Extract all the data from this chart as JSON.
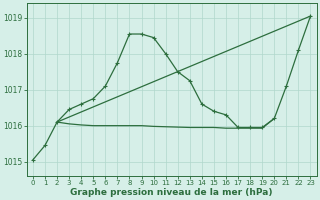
{
  "bg_color": "#d6efe8",
  "grid_color": "#b0d8cc",
  "line_color": "#2d6e3e",
  "title": "Graphe pression niveau de la mer (hPa)",
  "ylim": [
    1014.6,
    1019.4
  ],
  "xlim": [
    -0.5,
    23.5
  ],
  "yticks": [
    1015,
    1016,
    1017,
    1018,
    1019
  ],
  "xticks": [
    0,
    1,
    2,
    3,
    4,
    5,
    6,
    7,
    8,
    9,
    10,
    11,
    12,
    13,
    14,
    15,
    16,
    17,
    18,
    19,
    20,
    21,
    22,
    23
  ],
  "line1_x": [
    0,
    1,
    2,
    3,
    4,
    5,
    6,
    7,
    8,
    9,
    10,
    11,
    12,
    13,
    14,
    15,
    16,
    17,
    18,
    19,
    20,
    21,
    22,
    23
  ],
  "line1_y": [
    1015.05,
    1015.45,
    1016.1,
    1016.45,
    1016.6,
    1016.75,
    1017.1,
    1017.75,
    1018.55,
    1018.55,
    1018.45,
    1018.0,
    1017.5,
    1017.25,
    1016.6,
    1016.4,
    1016.3,
    1015.95,
    1015.95,
    1015.95,
    1016.2,
    1017.1,
    1018.1,
    1019.05
  ],
  "line2_x": [
    2,
    23
  ],
  "line2_y": [
    1016.1,
    1019.05
  ],
  "line3_x": [
    2,
    3,
    4,
    5,
    6,
    7,
    8,
    9,
    10,
    11,
    12,
    13,
    14,
    15,
    16,
    17,
    18,
    19,
    20
  ],
  "line3_y": [
    1016.1,
    1016.05,
    1016.02,
    1016.0,
    1016.0,
    1016.0,
    1016.0,
    1016.0,
    1015.98,
    1015.97,
    1015.96,
    1015.95,
    1015.95,
    1015.95,
    1015.93,
    1015.93,
    1015.93,
    1015.93,
    1016.2
  ],
  "title_fontsize": 6.5,
  "tick_fontsize": 5.0,
  "lw": 0.9,
  "marker_size": 3.5
}
